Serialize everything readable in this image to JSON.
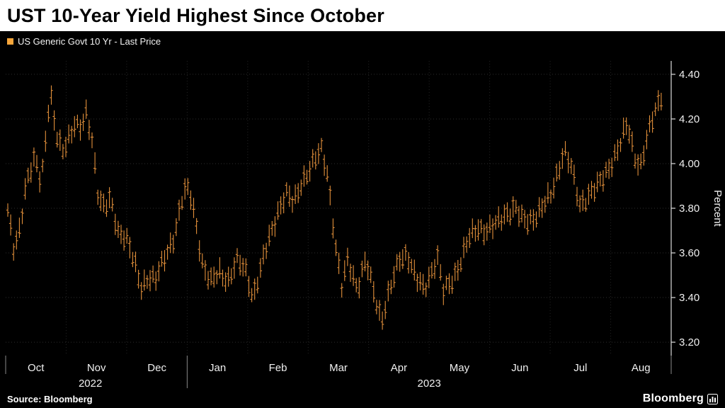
{
  "title": "UST 10-Year Yield Highest Since October",
  "legend": {
    "label": "US Generic Govt 10 Yr - Last Price",
    "swatch_color": "#F7A63B"
  },
  "source": "Source: Bloomberg",
  "brand": "Bloomberg",
  "chart_data": {
    "type": "bar",
    "style": "daily high-low bars with open/close ticks",
    "title": "UST 10-Year Yield Highest Since October",
    "series_name": "US Generic Govt 10 Yr - Last Price",
    "xlabel": "",
    "ylabel": "Percent",
    "ylim": [
      3.14,
      4.46
    ],
    "yticks": [
      4.4,
      4.2,
      4.0,
      3.8,
      3.6,
      3.4,
      3.2
    ],
    "grid": true,
    "legend_position": "top-left",
    "x_months": [
      "Oct",
      "Nov",
      "Dec",
      "Jan",
      "Feb",
      "Mar",
      "Apr",
      "May",
      "Jun",
      "Jul",
      "Aug"
    ],
    "year_labels": [
      {
        "label": "2022",
        "center_month": 1.4
      },
      {
        "label": "2023",
        "center_month": 7.0
      }
    ],
    "span_months": 10.8,
    "bar_count": 226,
    "bar_color": "#E28F3A",
    "grid_color": "#2e2e2e",
    "axis_color": "#dcdcdc",
    "series": [
      {
        "name": "US Generic Govt 10 Yr - Last Price",
        "anchors": [
          [
            0.0,
            3.78
          ],
          [
            0.1,
            3.62
          ],
          [
            0.2,
            3.72
          ],
          [
            0.3,
            3.9
          ],
          [
            0.45,
            4.02
          ],
          [
            0.55,
            3.92
          ],
          [
            0.62,
            4.1
          ],
          [
            0.7,
            4.33
          ],
          [
            0.8,
            4.12
          ],
          [
            0.9,
            4.05
          ],
          [
            1.0,
            4.12
          ],
          [
            1.1,
            4.18
          ],
          [
            1.22,
            4.15
          ],
          [
            1.3,
            4.22
          ],
          [
            1.4,
            4.1
          ],
          [
            1.5,
            3.85
          ],
          [
            1.6,
            3.8
          ],
          [
            1.7,
            3.83
          ],
          [
            1.82,
            3.7
          ],
          [
            1.95,
            3.68
          ],
          [
            2.08,
            3.56
          ],
          [
            2.2,
            3.44
          ],
          [
            2.32,
            3.5
          ],
          [
            2.45,
            3.48
          ],
          [
            2.6,
            3.58
          ],
          [
            2.75,
            3.68
          ],
          [
            2.9,
            3.86
          ],
          [
            3.0,
            3.88
          ],
          [
            3.1,
            3.76
          ],
          [
            3.22,
            3.55
          ],
          [
            3.35,
            3.46
          ],
          [
            3.5,
            3.52
          ],
          [
            3.65,
            3.48
          ],
          [
            3.8,
            3.56
          ],
          [
            3.95,
            3.52
          ],
          [
            4.05,
            3.4
          ],
          [
            4.18,
            3.52
          ],
          [
            4.3,
            3.65
          ],
          [
            4.45,
            3.78
          ],
          [
            4.6,
            3.86
          ],
          [
            4.72,
            3.82
          ],
          [
            4.85,
            3.92
          ],
          [
            4.97,
            3.96
          ],
          [
            5.08,
            4.01
          ],
          [
            5.18,
            4.07
          ],
          [
            5.28,
            3.97
          ],
          [
            5.42,
            3.62
          ],
          [
            5.52,
            3.44
          ],
          [
            5.62,
            3.58
          ],
          [
            5.78,
            3.44
          ],
          [
            5.92,
            3.56
          ],
          [
            6.08,
            3.4
          ],
          [
            6.18,
            3.3
          ],
          [
            6.32,
            3.43
          ],
          [
            6.48,
            3.58
          ],
          [
            6.6,
            3.6
          ],
          [
            6.74,
            3.48
          ],
          [
            6.88,
            3.44
          ],
          [
            7.0,
            3.52
          ],
          [
            7.1,
            3.58
          ],
          [
            7.2,
            3.42
          ],
          [
            7.34,
            3.48
          ],
          [
            7.48,
            3.56
          ],
          [
            7.62,
            3.66
          ],
          [
            7.78,
            3.72
          ],
          [
            7.92,
            3.7
          ],
          [
            8.06,
            3.72
          ],
          [
            8.22,
            3.78
          ],
          [
            8.38,
            3.8
          ],
          [
            8.52,
            3.74
          ],
          [
            8.68,
            3.76
          ],
          [
            8.84,
            3.8
          ],
          [
            8.98,
            3.86
          ],
          [
            9.1,
            3.98
          ],
          [
            9.2,
            4.06
          ],
          [
            9.32,
            3.97
          ],
          [
            9.45,
            3.82
          ],
          [
            9.6,
            3.86
          ],
          [
            9.74,
            3.89
          ],
          [
            9.88,
            3.96
          ],
          [
            10.0,
            4.02
          ],
          [
            10.12,
            4.08
          ],
          [
            10.24,
            4.18
          ],
          [
            10.36,
            4.04
          ],
          [
            10.46,
            3.99
          ],
          [
            10.58,
            4.12
          ],
          [
            10.7,
            4.24
          ],
          [
            10.8,
            4.31
          ]
        ]
      }
    ]
  }
}
